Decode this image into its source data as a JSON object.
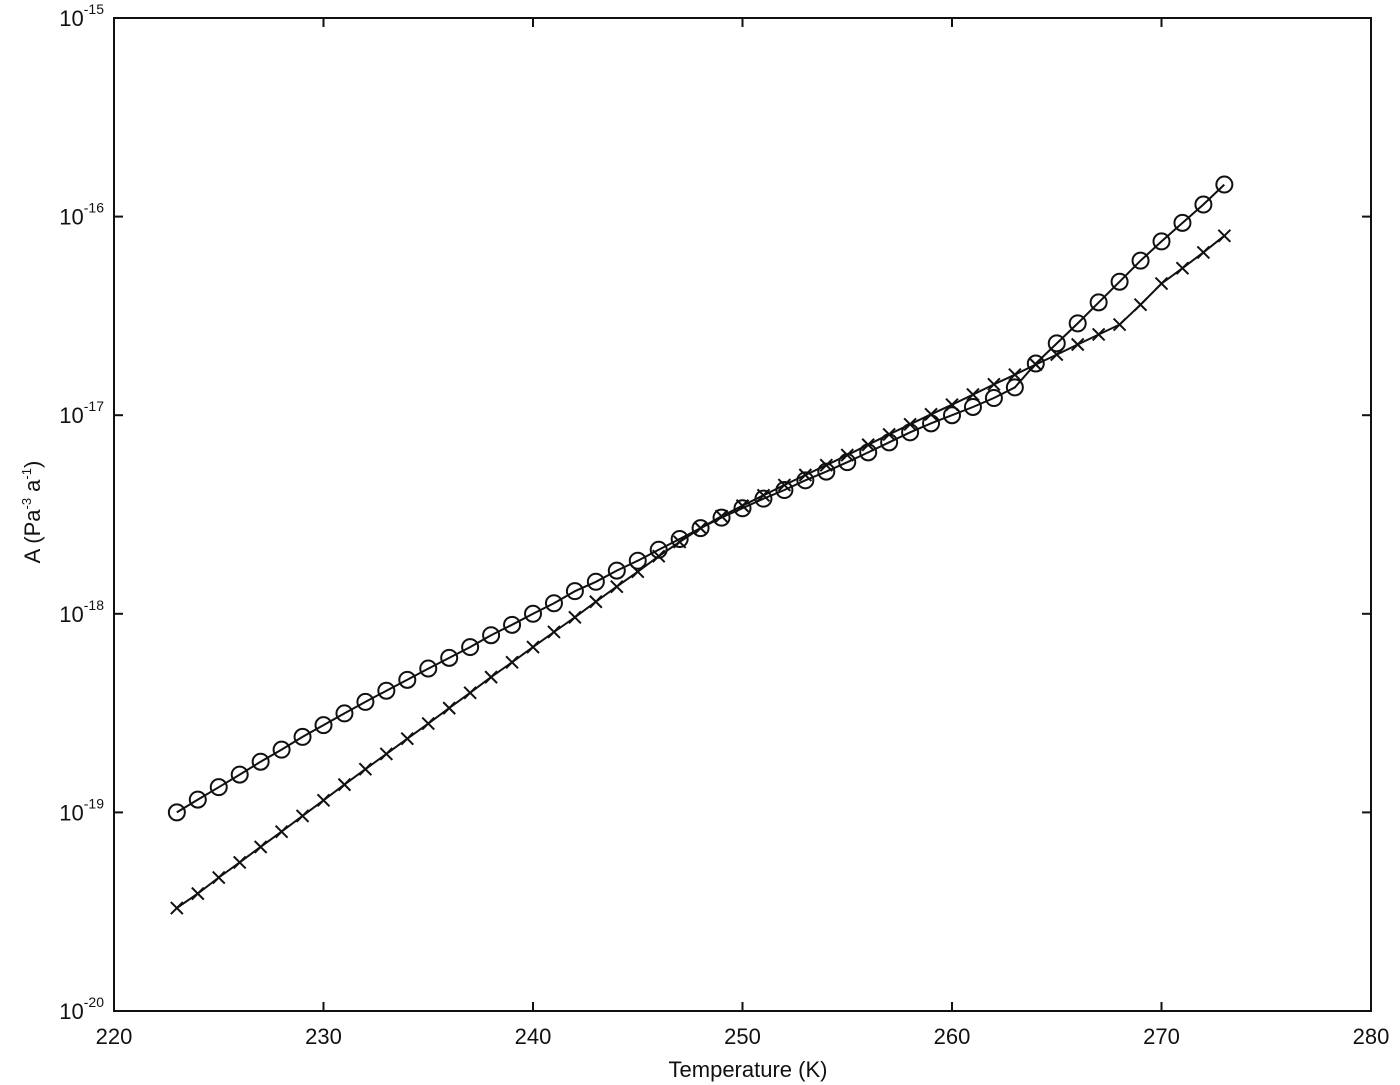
{
  "chart_data": {
    "type": "line",
    "title": "",
    "xlabel": "Temperature (K)",
    "ylabel": {
      "prefix": "A (Pa",
      "sup1": "-3",
      "middle": " a",
      "sup2": "-1",
      "suffix": ")"
    },
    "xlim": [
      220,
      280
    ],
    "ylim": [
      1e-20,
      1e-15
    ],
    "yscale": "log",
    "grid": false,
    "legend": "none",
    "x_ticks": [
      "220",
      "230",
      "240",
      "250",
      "260",
      "270",
      "280"
    ],
    "y_ticks": [
      {
        "base": "10",
        "exp": "-20"
      },
      {
        "base": "10",
        "exp": "-19"
      },
      {
        "base": "10",
        "exp": "-18"
      },
      {
        "base": "10",
        "exp": "-17"
      },
      {
        "base": "10",
        "exp": "-16"
      },
      {
        "base": "10",
        "exp": "-15"
      }
    ],
    "line_color": "#111111",
    "series": [
      {
        "marker": "circle",
        "x": [
          223,
          224,
          225,
          226,
          227,
          228,
          229,
          230,
          231,
          232,
          233,
          234,
          235,
          236,
          237,
          238,
          239,
          240,
          241,
          242,
          243,
          244,
          245,
          246,
          247,
          248,
          249,
          250,
          251,
          252,
          253,
          254,
          255,
          256,
          257,
          258,
          259,
          260,
          261,
          262,
          263,
          264,
          265,
          266,
          267,
          268,
          269,
          270,
          271,
          272,
          273
        ],
        "y": [
          1e-19,
          1.16e-19,
          1.34e-19,
          1.55e-19,
          1.8e-19,
          2.07e-19,
          2.4e-19,
          2.75e-19,
          3.15e-19,
          3.6e-19,
          4.1e-19,
          4.65e-19,
          5.3e-19,
          6e-19,
          6.8e-19,
          7.8e-19,
          8.8e-19,
          1e-18,
          1.13e-18,
          1.3e-18,
          1.45e-18,
          1.65e-18,
          1.85e-18,
          2.1e-18,
          2.38e-18,
          2.7e-18,
          3.05e-18,
          3.4e-18,
          3.8e-18,
          4.2e-18,
          4.7e-18,
          5.2e-18,
          5.8e-18,
          6.5e-18,
          7.3e-18,
          8.2e-18,
          9.1e-18,
          1e-17,
          1.1e-17,
          1.22e-17,
          1.38e-17,
          1.82e-17,
          2.3e-17,
          2.9e-17,
          3.7e-17,
          4.7e-17,
          6e-17,
          7.5e-17,
          9.3e-17,
          1.15e-16,
          1.45e-16
        ]
      },
      {
        "marker": "cross",
        "x": [
          223,
          224,
          225,
          226,
          227,
          228,
          229,
          230,
          231,
          232,
          233,
          234,
          235,
          236,
          237,
          238,
          239,
          240,
          241,
          242,
          243,
          244,
          245,
          246,
          247,
          248,
          249,
          250,
          251,
          252,
          253,
          254,
          255,
          256,
          257,
          258,
          259,
          260,
          261,
          262,
          263,
          264,
          265,
          266,
          267,
          268,
          269,
          270,
          271,
          272,
          273
        ],
        "y": [
          3.3e-20,
          3.9e-20,
          4.7e-20,
          5.6e-20,
          6.7e-20,
          8e-20,
          9.6e-20,
          1.15e-19,
          1.38e-19,
          1.65e-19,
          1.97e-19,
          2.35e-19,
          2.8e-19,
          3.35e-19,
          4e-19,
          4.8e-19,
          5.7e-19,
          6.8e-19,
          8.1e-19,
          9.6e-19,
          1.15e-18,
          1.37e-18,
          1.63e-18,
          1.95e-18,
          2.3e-18,
          2.7e-18,
          3.1e-18,
          3.5e-18,
          3.95e-18,
          4.45e-18,
          5e-18,
          5.6e-18,
          6.3e-18,
          7.1e-18,
          8e-18,
          9e-18,
          1.01e-17,
          1.13e-17,
          1.27e-17,
          1.43e-17,
          1.6e-17,
          1.8e-17,
          2.02e-17,
          2.27e-17,
          2.55e-17,
          2.86e-17,
          3.6e-17,
          4.6e-17,
          5.5e-17,
          6.6e-17,
          8e-17
        ]
      }
    ]
  }
}
